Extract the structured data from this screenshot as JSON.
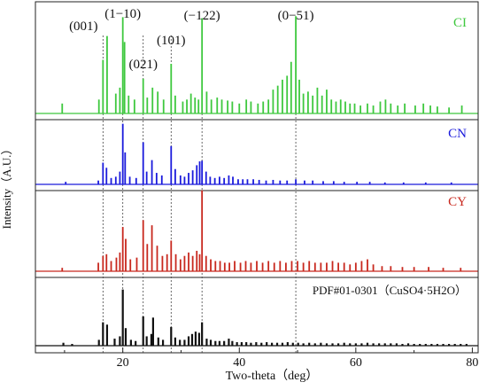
{
  "chart_data": {
    "type": "line",
    "xlabel": "Two-theta（deg）",
    "ylabel": "Intensity（A.U.）",
    "xlim": [
      5,
      81
    ],
    "x_ticks": [
      "20",
      "40",
      "60",
      "80"
    ],
    "grid": false,
    "reference_lines_deg": [
      16.6,
      20.0,
      23.5,
      28.3,
      33.6,
      49.7
    ],
    "peak_labels": [
      {
        "text": "(001)",
        "deg": 16.6
      },
      {
        "text": "(1−10)",
        "deg": 20.0
      },
      {
        "text": "(021)",
        "deg": 23.5
      },
      {
        "text": "(101)",
        "deg": 28.3
      },
      {
        "text": "(−122)",
        "deg": 33.6
      },
      {
        "text": "(0−51)",
        "deg": 49.7
      }
    ],
    "series": [
      {
        "name": "CI",
        "color": "#3ec83e",
        "peaks": [
          [
            9.6,
            0.1
          ],
          [
            15.9,
            0.14
          ],
          [
            16.6,
            0.54
          ],
          [
            17.3,
            0.78
          ],
          [
            18.8,
            0.2
          ],
          [
            19.5,
            0.26
          ],
          [
            20.0,
            0.97
          ],
          [
            20.3,
            0.72
          ],
          [
            21.0,
            0.18
          ],
          [
            22.0,
            0.14
          ],
          [
            23.5,
            0.35
          ],
          [
            24.2,
            0.16
          ],
          [
            25.1,
            0.26
          ],
          [
            26.0,
            0.22
          ],
          [
            27.0,
            0.14
          ],
          [
            28.3,
            0.5
          ],
          [
            29.0,
            0.18
          ],
          [
            30.3,
            0.12
          ],
          [
            31.0,
            0.14
          ],
          [
            31.7,
            0.2
          ],
          [
            32.4,
            0.16
          ],
          [
            33.0,
            0.14
          ],
          [
            33.6,
            0.96
          ],
          [
            34.4,
            0.22
          ],
          [
            35.2,
            0.14
          ],
          [
            36.2,
            0.16
          ],
          [
            37.0,
            0.14
          ],
          [
            38.0,
            0.13
          ],
          [
            38.8,
            0.12
          ],
          [
            40.0,
            0.1
          ],
          [
            41.2,
            0.14
          ],
          [
            42.0,
            0.12
          ],
          [
            43.2,
            0.1
          ],
          [
            44.1,
            0.12
          ],
          [
            45.0,
            0.14
          ],
          [
            45.8,
            0.24
          ],
          [
            46.6,
            0.28
          ],
          [
            47.4,
            0.34
          ],
          [
            48.2,
            0.38
          ],
          [
            48.9,
            0.52
          ],
          [
            49.7,
            0.98
          ],
          [
            50.3,
            0.34
          ],
          [
            51.0,
            0.2
          ],
          [
            51.8,
            0.22
          ],
          [
            52.6,
            0.18
          ],
          [
            53.4,
            0.26
          ],
          [
            54.2,
            0.18
          ],
          [
            55.0,
            0.24
          ],
          [
            55.8,
            0.14
          ],
          [
            56.6,
            0.12
          ],
          [
            57.4,
            0.14
          ],
          [
            58.2,
            0.12
          ],
          [
            59.0,
            0.1
          ],
          [
            59.8,
            0.1
          ],
          [
            60.8,
            0.08
          ],
          [
            62.0,
            0.1
          ],
          [
            63.0,
            0.08
          ],
          [
            64.2,
            0.12
          ],
          [
            65.1,
            0.14
          ],
          [
            66.0,
            0.1
          ],
          [
            67.2,
            0.08
          ],
          [
            68.4,
            0.1
          ],
          [
            70.2,
            0.08
          ],
          [
            71.6,
            0.1
          ],
          [
            72.8,
            0.08
          ],
          [
            74.0,
            0.07
          ],
          [
            76.0,
            0.06
          ],
          [
            78.2,
            0.08
          ]
        ]
      },
      {
        "name": "CN",
        "color": "#1a1adc",
        "peaks": [
          [
            10.2,
            0.04
          ],
          [
            15.8,
            0.06
          ],
          [
            16.6,
            0.34
          ],
          [
            17.2,
            0.26
          ],
          [
            18.0,
            0.1
          ],
          [
            18.8,
            0.12
          ],
          [
            19.5,
            0.2
          ],
          [
            20.0,
            0.95
          ],
          [
            20.4,
            0.5
          ],
          [
            21.2,
            0.12
          ],
          [
            22.3,
            0.1
          ],
          [
            23.5,
            0.66
          ],
          [
            24.1,
            0.2
          ],
          [
            25.0,
            0.38
          ],
          [
            25.8,
            0.18
          ],
          [
            26.7,
            0.14
          ],
          [
            28.3,
            0.6
          ],
          [
            29.0,
            0.24
          ],
          [
            29.9,
            0.14
          ],
          [
            30.6,
            0.12
          ],
          [
            31.3,
            0.18
          ],
          [
            32.0,
            0.22
          ],
          [
            32.7,
            0.3
          ],
          [
            33.2,
            0.36
          ],
          [
            33.6,
            0.37
          ],
          [
            34.3,
            0.2
          ],
          [
            35.0,
            0.12
          ],
          [
            35.8,
            0.1
          ],
          [
            36.6,
            0.12
          ],
          [
            37.4,
            0.1
          ],
          [
            38.2,
            0.14
          ],
          [
            38.9,
            0.12
          ],
          [
            39.8,
            0.08
          ],
          [
            40.6,
            0.08
          ],
          [
            41.4,
            0.08
          ],
          [
            42.4,
            0.08
          ],
          [
            43.4,
            0.07
          ],
          [
            44.6,
            0.06
          ],
          [
            45.8,
            0.07
          ],
          [
            47.0,
            0.06
          ],
          [
            48.2,
            0.06
          ],
          [
            49.7,
            0.08
          ],
          [
            51.2,
            0.06
          ],
          [
            52.6,
            0.06
          ],
          [
            54.4,
            0.05
          ],
          [
            56.2,
            0.05
          ],
          [
            58.0,
            0.04
          ],
          [
            60.2,
            0.04
          ],
          [
            62.4,
            0.04
          ],
          [
            65.0,
            0.03
          ],
          [
            68.2,
            0.03
          ],
          [
            72.0,
            0.03
          ],
          [
            76.4,
            0.03
          ]
        ]
      },
      {
        "name": "CY",
        "color": "#c8281e",
        "peaks": [
          [
            9.6,
            0.04
          ],
          [
            15.8,
            0.1
          ],
          [
            16.6,
            0.18
          ],
          [
            17.2,
            0.2
          ],
          [
            18.0,
            0.12
          ],
          [
            18.9,
            0.16
          ],
          [
            19.5,
            0.22
          ],
          [
            20.0,
            0.52
          ],
          [
            20.5,
            0.38
          ],
          [
            21.3,
            0.14
          ],
          [
            22.4,
            0.16
          ],
          [
            23.5,
            0.6
          ],
          [
            24.2,
            0.32
          ],
          [
            25.0,
            0.54
          ],
          [
            25.9,
            0.3
          ],
          [
            26.8,
            0.18
          ],
          [
            27.6,
            0.2
          ],
          [
            28.3,
            0.36
          ],
          [
            29.1,
            0.2
          ],
          [
            29.9,
            0.14
          ],
          [
            30.6,
            0.18
          ],
          [
            31.3,
            0.22
          ],
          [
            32.0,
            0.18
          ],
          [
            32.7,
            0.24
          ],
          [
            33.2,
            0.2
          ],
          [
            33.6,
            0.95
          ],
          [
            34.3,
            0.18
          ],
          [
            35.1,
            0.14
          ],
          [
            35.9,
            0.12
          ],
          [
            36.7,
            0.12
          ],
          [
            37.5,
            0.1
          ],
          [
            38.3,
            0.1
          ],
          [
            39.2,
            0.12
          ],
          [
            40.2,
            0.1
          ],
          [
            41.1,
            0.12
          ],
          [
            42.0,
            0.1
          ],
          [
            43.0,
            0.12
          ],
          [
            44.0,
            0.1
          ],
          [
            45.0,
            0.12
          ],
          [
            46.0,
            0.1
          ],
          [
            47.0,
            0.12
          ],
          [
            48.0,
            0.1
          ],
          [
            49.0,
            0.12
          ],
          [
            50.0,
            0.12
          ],
          [
            51.0,
            0.1
          ],
          [
            52.0,
            0.12
          ],
          [
            53.0,
            0.1
          ],
          [
            54.0,
            0.1
          ],
          [
            55.0,
            0.1
          ],
          [
            56.0,
            0.12
          ],
          [
            57.0,
            0.1
          ],
          [
            58.0,
            0.1
          ],
          [
            59.0,
            0.08
          ],
          [
            60.0,
            0.1
          ],
          [
            61.0,
            0.12
          ],
          [
            62.0,
            0.14
          ],
          [
            63.0,
            0.08
          ],
          [
            64.5,
            0.06
          ],
          [
            66.0,
            0.06
          ],
          [
            68.0,
            0.05
          ],
          [
            70.0,
            0.05
          ],
          [
            72.5,
            0.05
          ],
          [
            75.0,
            0.04
          ],
          [
            78.0,
            0.04
          ]
        ]
      },
      {
        "name": "PDF#01-0301（CuSO4·5H2O）",
        "color": "#111111",
        "peaks": [
          [
            9.8,
            0.05
          ],
          [
            11.3,
            0.03
          ],
          [
            15.9,
            0.1
          ],
          [
            16.6,
            0.4
          ],
          [
            17.3,
            0.36
          ],
          [
            18.6,
            0.12
          ],
          [
            19.5,
            0.16
          ],
          [
            20.0,
            0.96
          ],
          [
            20.5,
            0.3
          ],
          [
            21.4,
            0.1
          ],
          [
            22.2,
            0.08
          ],
          [
            23.5,
            0.5
          ],
          [
            24.1,
            0.16
          ],
          [
            24.9,
            0.2
          ],
          [
            25.2,
            0.48
          ],
          [
            26.1,
            0.14
          ],
          [
            26.9,
            0.1
          ],
          [
            28.3,
            0.32
          ],
          [
            29.0,
            0.14
          ],
          [
            29.8,
            0.1
          ],
          [
            30.6,
            0.1
          ],
          [
            31.3,
            0.16
          ],
          [
            31.9,
            0.2
          ],
          [
            32.5,
            0.24
          ],
          [
            33.1,
            0.22
          ],
          [
            33.6,
            0.4
          ],
          [
            34.4,
            0.12
          ],
          [
            35.1,
            0.1
          ],
          [
            35.9,
            0.08
          ],
          [
            36.6,
            0.08
          ],
          [
            37.4,
            0.08
          ],
          [
            38.2,
            0.12
          ],
          [
            38.8,
            0.08
          ],
          [
            39.6,
            0.06
          ],
          [
            40.4,
            0.06
          ],
          [
            41.2,
            0.06
          ],
          [
            42.0,
            0.05
          ],
          [
            42.9,
            0.06
          ],
          [
            43.8,
            0.05
          ],
          [
            44.7,
            0.06
          ],
          [
            45.6,
            0.05
          ],
          [
            46.5,
            0.05
          ],
          [
            47.4,
            0.05
          ],
          [
            48.3,
            0.06
          ],
          [
            49.2,
            0.05
          ],
          [
            50.1,
            0.05
          ],
          [
            51.0,
            0.04
          ],
          [
            52.0,
            0.05
          ],
          [
            53.0,
            0.04
          ],
          [
            54.0,
            0.05
          ],
          [
            55.0,
            0.04
          ],
          [
            56.0,
            0.04
          ],
          [
            57.0,
            0.04
          ],
          [
            58.0,
            0.05
          ],
          [
            59.0,
            0.04
          ],
          [
            60.0,
            0.04
          ],
          [
            61.0,
            0.04
          ],
          [
            62.0,
            0.05
          ],
          [
            63.0,
            0.04
          ],
          [
            64.0,
            0.04
          ],
          [
            65.0,
            0.04
          ],
          [
            66.0,
            0.04
          ],
          [
            67.0,
            0.04
          ],
          [
            68.0,
            0.03
          ],
          [
            69.0,
            0.04
          ],
          [
            70.0,
            0.03
          ],
          [
            71.0,
            0.03
          ],
          [
            72.0,
            0.03
          ],
          [
            73.0,
            0.03
          ],
          [
            74.0,
            0.03
          ],
          [
            75.0,
            0.03
          ],
          [
            76.0,
            0.03
          ],
          [
            77.0,
            0.03
          ],
          [
            78.0,
            0.03
          ],
          [
            79.0,
            0.03
          ]
        ]
      }
    ]
  }
}
